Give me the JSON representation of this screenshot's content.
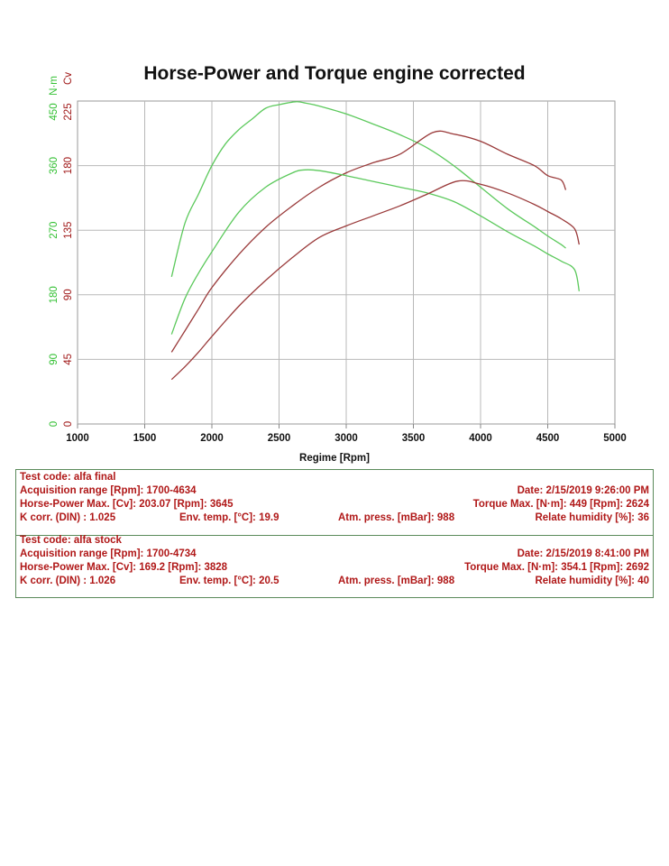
{
  "title": "Horse-Power and Torque engine corrected",
  "chart_data": {
    "type": "line",
    "title": "Horse-Power and Torque engine corrected",
    "xlabel": "Regime [Rpm]",
    "xlim": [
      1000,
      5000
    ],
    "x_ticks": [
      "1000",
      "1500",
      "2000",
      "2500",
      "3000",
      "3500",
      "4000",
      "4500",
      "5000"
    ],
    "y_axes": [
      {
        "label": "N·m",
        "lim": [
          0,
          450
        ],
        "ticks": [
          "0",
          "90",
          "180",
          "270",
          "360",
          "450"
        ],
        "color": "#33c033"
      },
      {
        "label": "Cv",
        "lim": [
          0,
          225
        ],
        "ticks": [
          "0",
          "45",
          "90",
          "135",
          "180",
          "225"
        ],
        "color": "#a01818"
      }
    ],
    "grid": true,
    "series": [
      {
        "test": "alfa final",
        "quantity": "torque",
        "unit": "N·m",
        "color": "#5cc95c",
        "x": [
          1700,
          1800,
          1900,
          2000,
          2100,
          2200,
          2300,
          2400,
          2500,
          2624,
          2700,
          2800,
          3000,
          3200,
          3400,
          3600,
          3800,
          4000,
          4200,
          4400,
          4500,
          4600,
          4634
        ],
        "y": [
          205,
          280,
          320,
          360,
          390,
          410,
          425,
          440,
          445,
          449,
          447,
          443,
          432,
          418,
          403,
          385,
          360,
          330,
          300,
          275,
          262,
          250,
          245
        ]
      },
      {
        "test": "alfa final",
        "quantity": "power",
        "unit": "Cv",
        "color": "#9a3a3a",
        "x": [
          1700,
          1800,
          1900,
          2000,
          2200,
          2400,
          2600,
          2800,
          3000,
          3200,
          3400,
          3645,
          3800,
          4000,
          4200,
          4400,
          4500,
          4600,
          4634
        ],
        "y": [
          50,
          65,
          80,
          95,
          118,
          137,
          152,
          165,
          175,
          182,
          188,
          203.07,
          202,
          197,
          188,
          180,
          173,
          170,
          163
        ]
      },
      {
        "test": "alfa stock",
        "quantity": "torque",
        "unit": "N·m",
        "color": "#5cc95c",
        "x": [
          1700,
          1800,
          1900,
          2000,
          2200,
          2400,
          2600,
          2692,
          2800,
          3000,
          3200,
          3400,
          3600,
          3800,
          4000,
          4200,
          4400,
          4500,
          4600,
          4700,
          4734
        ],
        "y": [
          125,
          175,
          210,
          240,
          295,
          330,
          350,
          354.1,
          353,
          346,
          338,
          330,
          322,
          310,
          290,
          268,
          248,
          237,
          227,
          215,
          185
        ]
      },
      {
        "test": "alfa stock",
        "quantity": "power",
        "unit": "Cv",
        "color": "#9a3a3a",
        "x": [
          1700,
          1800,
          1900,
          2000,
          2200,
          2400,
          2600,
          2800,
          3000,
          3200,
          3400,
          3600,
          3828,
          4000,
          4200,
          4400,
          4500,
          4600,
          4700,
          4734
        ],
        "y": [
          31,
          40,
          50,
          61,
          82,
          100,
          116,
          130,
          138,
          145,
          152,
          160,
          169.2,
          167,
          161,
          153,
          148,
          143,
          136,
          125
        ]
      }
    ]
  },
  "tests": [
    {
      "code_label": "Test code: alfa final",
      "acq_range": "Acquisition range [Rpm]: 1700-4634",
      "date": "Date: 2/15/2019   9:26:00 PM",
      "hp_max": "Horse-Power Max. [Cv]: 203.07   [Rpm]: 3645",
      "torque_max": "Torque Max. [N·m]: 449   [Rpm]: 2624",
      "k_corr": "K corr. (DIN) : 1.025",
      "env_temp": "Env. temp. [°C]: 19.9",
      "atm_press": "Atm. press. [mBar]: 988",
      "humidity": "Relate humidity [%]: 36"
    },
    {
      "code_label": "Test code: alfa stock",
      "acq_range": "Acquisition range [Rpm]: 1700-4734",
      "date": "Date: 2/15/2019   8:41:00 PM",
      "hp_max": "Horse-Power Max. [Cv]: 169.2   [Rpm]: 3828",
      "torque_max": "Torque Max. [N·m]: 354.1   [Rpm]: 2692",
      "k_corr": "K corr. (DIN) : 1.026",
      "env_temp": "Env. temp. [°C]: 20.5",
      "atm_press": "Atm. press. [mBar]: 988",
      "humidity": "Relate humidity [%]: 40"
    }
  ]
}
